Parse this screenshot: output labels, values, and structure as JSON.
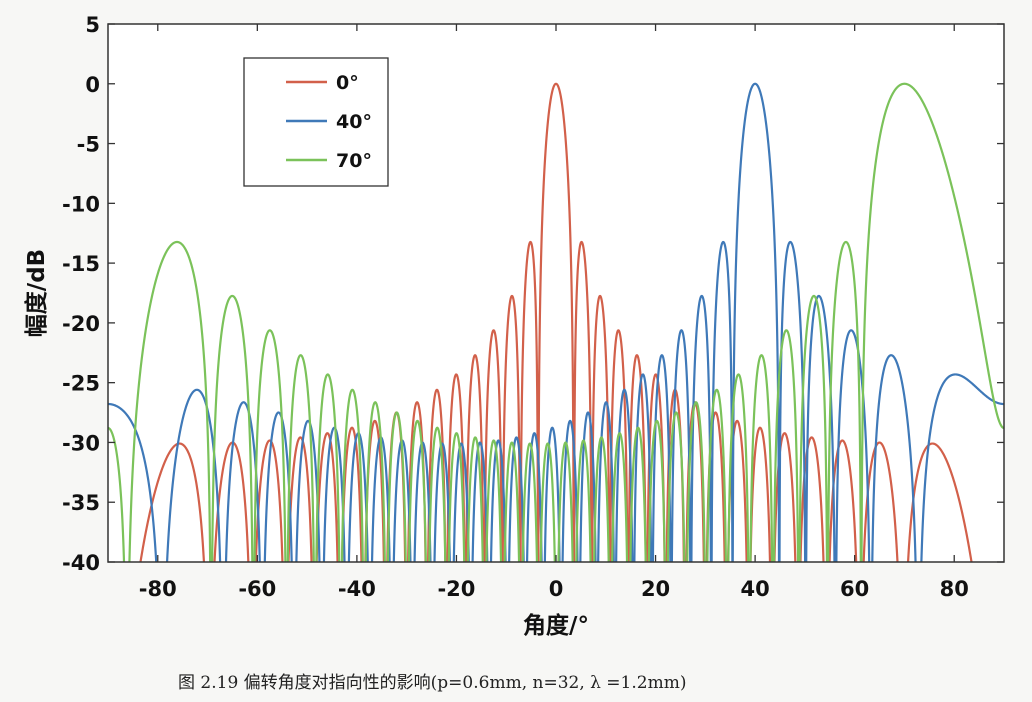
{
  "caption": "图 2.19  偏转角度对指向性的影响(p=0.6mm, n=32,  λ =1.2mm)",
  "chart_data": {
    "type": "line",
    "title": "",
    "xlabel": "角度/°",
    "ylabel": "幅度/dB",
    "xlim": [
      -90,
      90
    ],
    "ylim": [
      -40,
      5
    ],
    "xticks": [
      -80,
      -60,
      -40,
      -20,
      0,
      20,
      40,
      60,
      80
    ],
    "yticks": [
      5,
      0,
      -5,
      -10,
      -15,
      -20,
      -25,
      -30,
      -35,
      -40
    ],
    "grid": false,
    "legend_position": "top-left",
    "array": {
      "pitch_mm": 0.6,
      "elements": 32,
      "wavelength_mm": 1.2
    },
    "series": [
      {
        "name": "0°",
        "steer_deg": 0,
        "color": "#d2604a"
      },
      {
        "name": "40°",
        "steer_deg": 40,
        "color": "#3f79b8"
      },
      {
        "name": "70°",
        "steer_deg": 70,
        "color": "#7bc25a"
      }
    ]
  }
}
